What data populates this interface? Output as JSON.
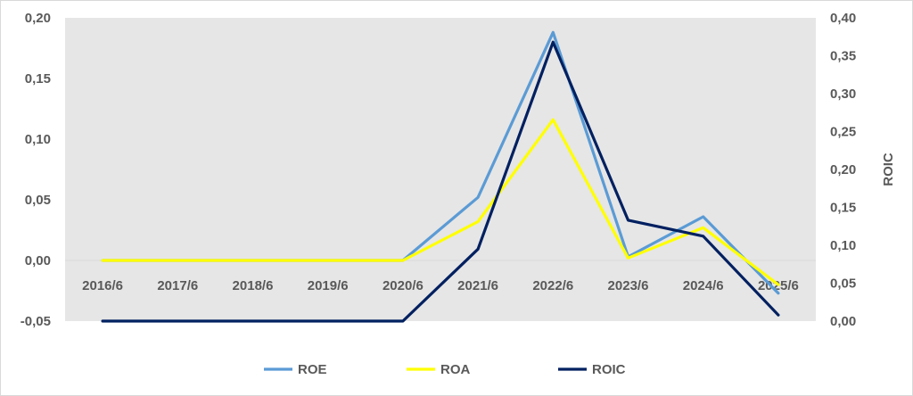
{
  "chart_data": {
    "type": "line",
    "title": "",
    "xlabel": "",
    "ylabel": "",
    "y2label": "ROIC",
    "categories": [
      "2016/6",
      "2017/6",
      "2018/6",
      "2019/6",
      "2020/6",
      "2021/6",
      "2022/6",
      "2023/6",
      "2024/6",
      "2025/6"
    ],
    "ylim": [
      -0.05,
      0.2
    ],
    "y2lim": [
      0.0,
      0.4
    ],
    "yticks": [
      "-0,05",
      "0,00",
      "0,05",
      "0,10",
      "0,15",
      "0,20"
    ],
    "y2ticks": [
      "0,00",
      "0,05",
      "0,10",
      "0,15",
      "0,20",
      "0,25",
      "0,30",
      "0,35",
      "0,40"
    ],
    "grid": false,
    "legend_position": "bottom",
    "plot_background": "#e6e6e6",
    "series": [
      {
        "name": "ROE",
        "axis": "left",
        "color": "#5b9bd5",
        "values": [
          0,
          0,
          0,
          0,
          0,
          0.052,
          0.188,
          0.003,
          0.036,
          -0.027
        ]
      },
      {
        "name": "ROA",
        "axis": "left",
        "color": "#ffff00",
        "values": [
          0,
          0,
          0,
          0,
          0,
          0.032,
          0.116,
          0.002,
          0.027,
          -0.02
        ]
      },
      {
        "name": "ROIC",
        "axis": "right",
        "color": "#002060",
        "values": [
          0,
          0,
          0,
          0,
          0,
          0.095,
          0.368,
          0.133,
          0.112,
          0.008
        ]
      }
    ]
  }
}
